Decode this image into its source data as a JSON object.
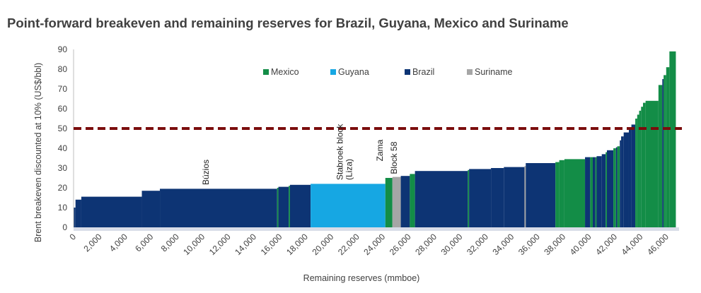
{
  "title": "Point-forward breakeven and remaining reserves for Brazil, Guyana, Mexico and Suriname",
  "chart_data": {
    "type": "area",
    "subtype": "step-supply-curve",
    "title": "Point-forward breakeven and remaining reserves for Brazil, Guyana, Mexico and Suriname",
    "xlabel": "Remaining reserves (mmboe)",
    "ylabel": "Brent breakeven discounted at 10% (US$/bbl)",
    "xlim": [
      0,
      47000
    ],
    "ylim": [
      0,
      90
    ],
    "x_ticks": [
      0,
      2000,
      4000,
      6000,
      8000,
      10000,
      12000,
      14000,
      16000,
      18000,
      20000,
      22000,
      24000,
      26000,
      28000,
      30000,
      32000,
      34000,
      36000,
      38000,
      40000,
      42000,
      44000,
      46000
    ],
    "x_tick_labels": [
      "0",
      "2,000",
      "4,000",
      "6,000",
      "8,000",
      "10,000",
      "12,000",
      "14,000",
      "16,000",
      "18,000",
      "20,000",
      "22,000",
      "24,000",
      "26,000",
      "28,000",
      "30,000",
      "32,000",
      "34,000",
      "36,000",
      "38,000",
      "40,000",
      "42,000",
      "44,000",
      "46,000"
    ],
    "y_ticks": [
      0,
      10,
      20,
      30,
      40,
      50,
      60,
      70,
      80,
      90
    ],
    "y_tick_labels": [
      "0",
      "10",
      "20",
      "30",
      "40",
      "50",
      "60",
      "70",
      "80",
      "90"
    ],
    "grid": false,
    "legend_position": "top-center",
    "reference_line": {
      "y": 50,
      "style": "dashed",
      "color": "#7b0d0d"
    },
    "colors": {
      "Mexico": "#138d47",
      "Guyana": "#16a7e3",
      "Brazil": "#0d3474",
      "Suriname": "#a6a6a6",
      "baseline": "#d9dde8"
    },
    "series": [
      {
        "name": "Mexico"
      },
      {
        "name": "Guyana"
      },
      {
        "name": "Brazil"
      },
      {
        "name": "Suriname"
      }
    ],
    "segments": [
      {
        "country": "Brazil",
        "x0": 0,
        "x1": 150,
        "y": 10
      },
      {
        "country": "Brazil",
        "x0": 150,
        "x1": 600,
        "y": 14
      },
      {
        "country": "Brazil",
        "x0": 600,
        "x1": 5300,
        "y": 15.5
      },
      {
        "country": "Brazil",
        "x0": 5300,
        "x1": 6700,
        "y": 18.5
      },
      {
        "country": "Brazil",
        "x0": 6700,
        "x1": 15800,
        "y": 19.5
      },
      {
        "country": "Mexico",
        "x0": 15800,
        "x1": 15900,
        "y": 20
      },
      {
        "country": "Brazil",
        "x0": 15900,
        "x1": 16700,
        "y": 20.5
      },
      {
        "country": "Mexico",
        "x0": 16700,
        "x1": 16800,
        "y": 21
      },
      {
        "country": "Brazil",
        "x0": 16800,
        "x1": 18400,
        "y": 21.5
      },
      {
        "country": "Guyana",
        "x0": 18400,
        "x1": 24200,
        "y": 22
      },
      {
        "country": "Mexico",
        "x0": 24200,
        "x1": 24750,
        "y": 25
      },
      {
        "country": "Suriname",
        "x0": 24750,
        "x1": 25400,
        "y": 25.5
      },
      {
        "country": "Brazil",
        "x0": 25400,
        "x1": 26100,
        "y": 26
      },
      {
        "country": "Mexico",
        "x0": 26100,
        "x1": 26500,
        "y": 27
      },
      {
        "country": "Brazil",
        "x0": 26500,
        "x1": 30600,
        "y": 28.5
      },
      {
        "country": "Mexico",
        "x0": 30600,
        "x1": 30700,
        "y": 29
      },
      {
        "country": "Brazil",
        "x0": 30700,
        "x1": 32400,
        "y": 29.5
      },
      {
        "country": "Brazil",
        "x0": 32400,
        "x1": 33400,
        "y": 30
      },
      {
        "country": "Brazil",
        "x0": 33400,
        "x1": 35000,
        "y": 30.5
      },
      {
        "country": "Suriname",
        "x0": 35000,
        "x1": 35100,
        "y": 31
      },
      {
        "country": "Brazil",
        "x0": 35100,
        "x1": 37400,
        "y": 32.5
      },
      {
        "country": "Mexico",
        "x0": 37400,
        "x1": 37700,
        "y": 33
      },
      {
        "country": "Mexico",
        "x0": 37700,
        "x1": 38100,
        "y": 34
      },
      {
        "country": "Mexico",
        "x0": 38100,
        "x1": 39700,
        "y": 34.5
      },
      {
        "country": "Brazil",
        "x0": 39700,
        "x1": 40100,
        "y": 35.5
      },
      {
        "country": "Mexico",
        "x0": 40100,
        "x1": 40300,
        "y": 35.5
      },
      {
        "country": "Brazil",
        "x0": 40300,
        "x1": 40500,
        "y": 35.5
      },
      {
        "country": "Mexico",
        "x0": 40500,
        "x1": 40600,
        "y": 35.5
      },
      {
        "country": "Brazil",
        "x0": 40600,
        "x1": 41000,
        "y": 36
      },
      {
        "country": "Brazil",
        "x0": 41000,
        "x1": 41300,
        "y": 37
      },
      {
        "country": "Mexico",
        "x0": 41300,
        "x1": 41400,
        "y": 38
      },
      {
        "country": "Brazil",
        "x0": 41400,
        "x1": 41900,
        "y": 39
      },
      {
        "country": "Mexico",
        "x0": 41900,
        "x1": 42100,
        "y": 40
      },
      {
        "country": "Brazil",
        "x0": 42100,
        "x1": 42200,
        "y": 40.5
      },
      {
        "country": "Mexico",
        "x0": 42200,
        "x1": 42400,
        "y": 41
      },
      {
        "country": "Brazil",
        "x0": 42400,
        "x1": 42500,
        "y": 44
      },
      {
        "country": "Brazil",
        "x0": 42500,
        "x1": 42700,
        "y": 46
      },
      {
        "country": "Brazil",
        "x0": 42700,
        "x1": 43100,
        "y": 48
      },
      {
        "country": "Brazil",
        "x0": 43100,
        "x1": 43300,
        "y": 50
      },
      {
        "country": "Brazil",
        "x0": 43300,
        "x1": 43600,
        "y": 52
      },
      {
        "country": "Mexico",
        "x0": 43600,
        "x1": 43750,
        "y": 55
      },
      {
        "country": "Mexico",
        "x0": 43750,
        "x1": 43900,
        "y": 57
      },
      {
        "country": "Mexico",
        "x0": 43900,
        "x1": 44050,
        "y": 59
      },
      {
        "country": "Mexico",
        "x0": 44050,
        "x1": 44200,
        "y": 61
      },
      {
        "country": "Mexico",
        "x0": 44200,
        "x1": 44400,
        "y": 63
      },
      {
        "country": "Mexico",
        "x0": 44400,
        "x1": 45400,
        "y": 64
      },
      {
        "country": "Mexico",
        "x0": 45400,
        "x1": 45700,
        "y": 72
      },
      {
        "country": "Brazil",
        "x0": 45700,
        "x1": 45800,
        "y": 75
      },
      {
        "country": "Mexico",
        "x0": 45800,
        "x1": 46000,
        "y": 77
      },
      {
        "country": "Mexico",
        "x0": 46000,
        "x1": 46250,
        "y": 81
      },
      {
        "country": "Mexico",
        "x0": 46250,
        "x1": 46750,
        "y": 89
      }
    ],
    "annotations": [
      {
        "text": "Búzios",
        "x": 10500,
        "y": 20
      },
      {
        "text": "Stabroek block",
        "x": 20900,
        "y": 22.5
      },
      {
        "text": "(Liza)",
        "x": 21600,
        "y": 22.5
      },
      {
        "text": "Zama",
        "x": 24000,
        "y": 32
      },
      {
        "text": "Block 58",
        "x": 25100,
        "y": 25.5
      }
    ]
  }
}
